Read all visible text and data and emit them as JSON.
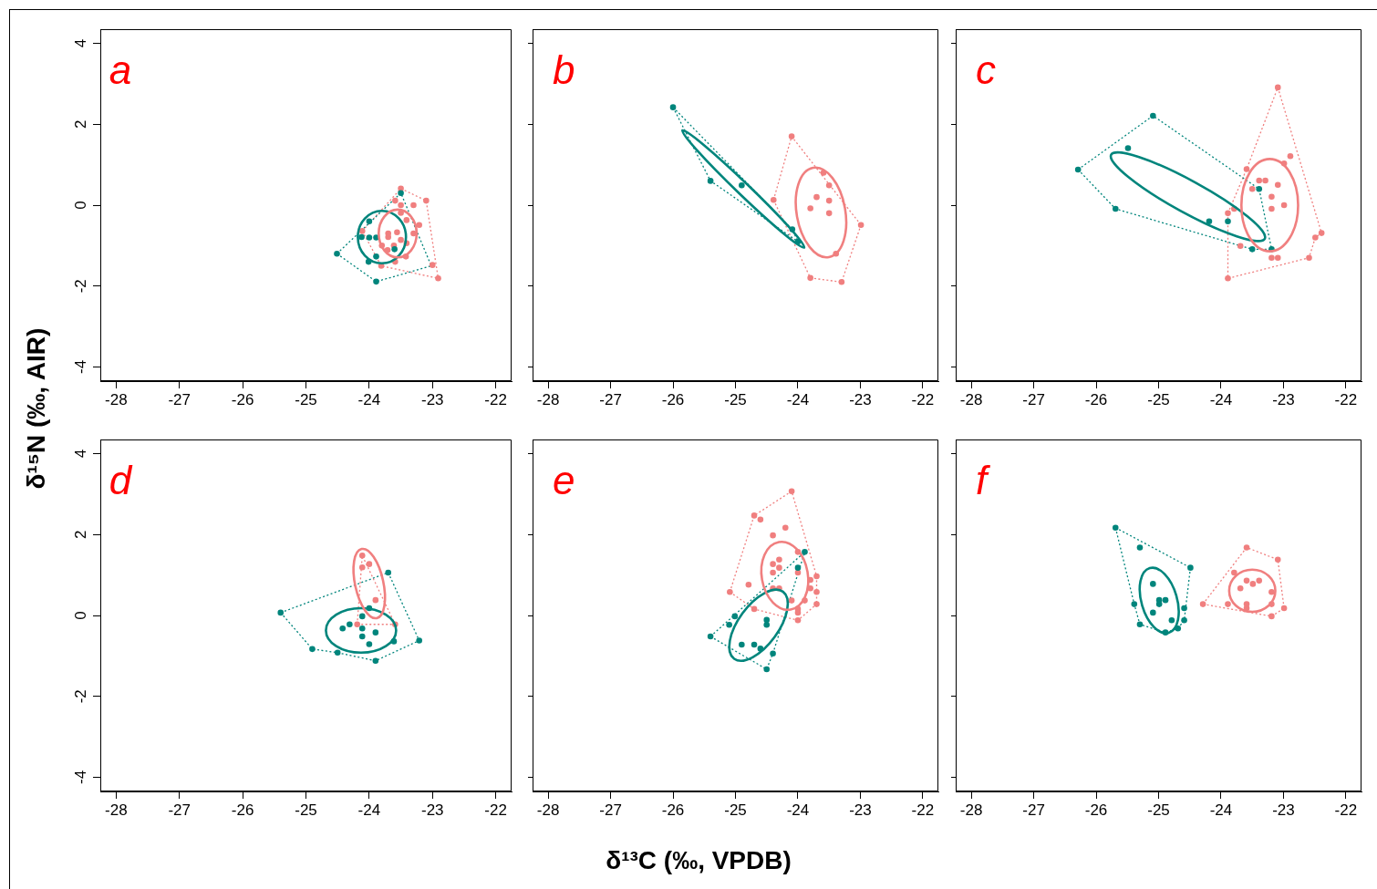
{
  "chart_data": [
    {
      "type": "scatter",
      "title": "a",
      "ylabel": "δ¹⁵N (‰, AIR)",
      "xlim": [
        -28.25,
        -21.75
      ],
      "ylim": [
        -4.35,
        4.35
      ],
      "xticks": [
        -28,
        -27,
        -26,
        -25,
        -24,
        -23,
        -22
      ],
      "yticks": [
        -4,
        -2,
        0,
        2,
        4
      ],
      "series": [
        {
          "marker": "circle",
          "color": "#00857c",
          "x": [
            -24.51,
            -23.89,
            -23.5,
            -24.0,
            -24.12,
            -24.0,
            -23.89,
            -23.6,
            -23.89,
            -24.01
          ],
          "values": [
            -1.2,
            -1.89,
            0.3,
            -0.4,
            -0.79,
            -0.8,
            -0.8,
            -1.09,
            -1.27,
            -1.4
          ]
        },
        {
          "marker": "circle",
          "color": "#f07f7f",
          "x": [
            -23.5,
            -23.59,
            -23.5,
            -23.3,
            -23.1,
            -23.5,
            -23.41,
            -23.21,
            -24.11,
            -23.7,
            -23.56,
            -23.3,
            -23.7,
            -23.5,
            -23.8,
            -23.61,
            -23.41,
            -23.71,
            -23.42,
            -23.59,
            -23.81,
            -23.0,
            -22.91
          ],
          "values": [
            0.41,
            0.11,
            0,
            0,
            0.11,
            -0.19,
            -0.37,
            -0.49,
            -0.64,
            -0.7,
            -0.67,
            -0.7,
            -0.79,
            -0.86,
            -1.0,
            -1.0,
            -0.94,
            -1.11,
            -1.27,
            -1.4,
            -1.5,
            -1.48,
            -1.81
          ]
        },
        {
          "type": "line",
          "marker": "none",
          "line_style": "dotted",
          "color": "#00857c",
          "x": [
            -24.51,
            -23.5,
            -23.02
          ],
          "values": [
            -1.2,
            0.3,
            -1.5
          ]
        },
        {
          "type": "line",
          "marker": "none",
          "line_style": "dotted",
          "color": "#00857c",
          "x": [
            -24.51,
            -23.89,
            -23.02
          ],
          "values": [
            -1.2,
            -1.89,
            -1.5
          ]
        },
        {
          "type": "line",
          "marker": "none",
          "line_style": "dotted",
          "color": "#f07f7f",
          "x": [
            -24.11,
            -23.5,
            -23.1,
            -22.91
          ],
          "values": [
            -0.64,
            0.41,
            0.11,
            -1.81
          ]
        },
        {
          "type": "line",
          "marker": "none",
          "line_style": "dotted",
          "color": "#f07f7f",
          "x": [
            -24.11,
            -23.81,
            -22.91
          ],
          "values": [
            -0.64,
            -1.5,
            -1.81
          ]
        }
      ]
    },
    {
      "type": "scatter",
      "title": "b",
      "tick_labels": "x",
      "xlim": [
        -28.25,
        -21.75
      ],
      "ylim": [
        -4.35,
        4.35
      ],
      "xticks": [
        -28,
        -27,
        -26,
        -25,
        -24,
        -23,
        -22
      ],
      "yticks": [
        -4,
        -2,
        0,
        2,
        4
      ],
      "series": [
        {
          "marker": "circle",
          "color": "#00857c",
          "x": [
            -26.0,
            -25.4,
            -24.9,
            -24.09,
            -24.0
          ],
          "values": [
            2.42,
            0.6,
            0.49,
            -0.6,
            -0.9
          ]
        },
        {
          "marker": "circle",
          "color": "#f07f7f",
          "x": [
            -24.1,
            -23.59,
            -23.5,
            -23.7,
            -23.5,
            -24.39,
            -23.8,
            -23.5,
            -22.99,
            -23.39,
            -23.8,
            -23.3
          ],
          "values": [
            1.7,
            0.8,
            0.49,
            0.2,
            0.11,
            0.13,
            -0.08,
            -0.2,
            -0.49,
            -1.2,
            -1.8,
            -1.9
          ]
        },
        {
          "type": "line",
          "marker": "none",
          "line_style": "dotted",
          "color": "#00857c",
          "x": [
            -26.0,
            -24.09,
            -24.0
          ],
          "values": [
            2.42,
            -0.6,
            -0.9
          ]
        },
        {
          "type": "line",
          "marker": "none",
          "line_style": "dotted",
          "color": "#00857c",
          "x": [
            -26.0,
            -25.4,
            -24.0
          ],
          "values": [
            2.42,
            0.6,
            -0.9
          ]
        },
        {
          "type": "line",
          "marker": "none",
          "line_style": "dotted",
          "color": "#f07f7f",
          "x": [
            -24.39,
            -24.1,
            -22.99
          ],
          "values": [
            0.13,
            1.7,
            -0.49
          ]
        },
        {
          "type": "line",
          "marker": "none",
          "line_style": "dotted",
          "color": "#f07f7f",
          "x": [
            -24.39,
            -23.8,
            -23.3,
            -22.99
          ],
          "values": [
            0.13,
            -1.8,
            -1.9,
            -0.49
          ]
        }
      ]
    },
    {
      "type": "scatter",
      "title": "c",
      "tick_labels": "x",
      "xlim": [
        -28.25,
        -21.75
      ],
      "ylim": [
        -4.35,
        4.35
      ],
      "xticks": [
        -28,
        -27,
        -26,
        -25,
        -24,
        -23,
        -22
      ],
      "yticks": [
        -4,
        -2,
        0,
        2,
        4
      ],
      "series": [
        {
          "marker": "circle",
          "color": "#00857c",
          "x": [
            -25.09,
            -26.29,
            -25.49,
            -25.69,
            -24.19,
            -23.89,
            -23.39,
            -23.5,
            -23.19
          ],
          "values": [
            2.21,
            0.88,
            1.41,
            -0.09,
            -0.4,
            -0.4,
            0.4,
            -1.09,
            -1.09
          ]
        },
        {
          "marker": "circle",
          "color": "#f07f7f",
          "x": [
            -23.09,
            -22.89,
            -22.99,
            -23.59,
            -23.39,
            -23.29,
            -23.5,
            -23.09,
            -23.19,
            -22.99,
            -23.19,
            -23.79,
            -23.89,
            -22.49,
            -22.39,
            -22.59,
            -23.19,
            -23.09,
            -23.69,
            -23.89
          ],
          "values": [
            2.91,
            1.21,
            1.03,
            0.89,
            0.61,
            0.61,
            0.4,
            0.5,
            0.21,
            0,
            -0.09,
            -0.09,
            -0.2,
            -0.8,
            -0.69,
            -1.3,
            -1.3,
            -1.3,
            -1.01,
            -1.81
          ]
        },
        {
          "type": "line",
          "marker": "none",
          "line_style": "dotted",
          "color": "#00857c",
          "x": [
            -26.29,
            -25.09,
            -23.39,
            -23.19
          ],
          "values": [
            0.88,
            2.21,
            0.4,
            -1.09
          ]
        },
        {
          "type": "line",
          "marker": "none",
          "line_style": "dotted",
          "color": "#00857c",
          "x": [
            -26.29,
            -25.69,
            -23.5,
            -23.19
          ],
          "values": [
            0.88,
            -0.09,
            -1.09,
            -1.09
          ]
        },
        {
          "type": "line",
          "marker": "none",
          "line_style": "dotted",
          "color": "#f07f7f",
          "x": [
            -23.89,
            -23.59,
            -23.09,
            -22.39
          ],
          "values": [
            -0.2,
            0.89,
            2.91,
            -0.69
          ]
        },
        {
          "type": "line",
          "marker": "none",
          "line_style": "dotted",
          "color": "#f07f7f",
          "x": [
            -23.89,
            -23.89,
            -22.59,
            -22.49,
            -22.39
          ],
          "values": [
            -0.2,
            -1.81,
            -1.3,
            -0.8,
            -0.69
          ]
        }
      ]
    },
    {
      "type": "scatter",
      "title": "d",
      "xlim": [
        -28.25,
        -21.75
      ],
      "ylim": [
        -4.35,
        4.35
      ],
      "xticks": [
        -28,
        -27,
        -26,
        -25,
        -24,
        -23,
        -22
      ],
      "yticks": [
        -4,
        -2,
        0,
        2,
        4
      ],
      "series": [
        {
          "marker": "circle",
          "color": "#00857c",
          "x": [
            -25.4,
            -23.7,
            -24.0,
            -24.11,
            -24.31,
            -24.42,
            -24.11,
            -23.9,
            -24.11,
            -24.0,
            -23.61,
            -23.21,
            -24.9,
            -24.5,
            -23.9
          ],
          "values": [
            0.07,
            1.06,
            0.18,
            -0.02,
            -0.22,
            -0.32,
            -0.32,
            -0.42,
            -0.52,
            -0.71,
            -0.64,
            -0.62,
            -0.83,
            -0.92,
            -1.12
          ]
        },
        {
          "marker": "circle",
          "color": "#f07f7f",
          "x": [
            -24.11,
            -24.0,
            -24.11,
            -23.9,
            -24.19,
            -23.59
          ],
          "values": [
            1.48,
            1.27,
            1.19,
            0.38,
            -0.22,
            -0.22
          ]
        },
        {
          "type": "line",
          "marker": "none",
          "line_style": "dotted",
          "color": "#00857c",
          "x": [
            -25.4,
            -23.7,
            -23.21
          ],
          "values": [
            0.07,
            1.06,
            -0.62
          ]
        },
        {
          "type": "line",
          "marker": "none",
          "line_style": "dotted",
          "color": "#00857c",
          "x": [
            -25.4,
            -24.9,
            -24.5,
            -23.9,
            -23.21
          ],
          "values": [
            0.07,
            -0.83,
            -0.92,
            -1.12,
            -0.62
          ]
        },
        {
          "type": "line",
          "marker": "none",
          "line_style": "dotted",
          "color": "#f07f7f",
          "x": [
            -24.19,
            -24.11,
            -23.59
          ],
          "values": [
            -0.22,
            1.48,
            -0.22
          ]
        },
        {
          "type": "line",
          "marker": "none",
          "line_style": "dotted",
          "color": "#f07f7f",
          "x": [
            -24.19,
            -23.59
          ],
          "values": [
            -0.22,
            -0.22
          ]
        }
      ]
    },
    {
      "type": "scatter",
      "title": "e",
      "xlabel": "δ¹³C (‰, VPDB)",
      "tick_labels": "x",
      "xlim": [
        -28.25,
        -21.75
      ],
      "ylim": [
        -4.35,
        4.35
      ],
      "xticks": [
        -28,
        -27,
        -26,
        -25,
        -24,
        -23,
        -22
      ],
      "yticks": [
        -4,
        -2,
        0,
        2,
        4
      ],
      "series": [
        {
          "marker": "circle",
          "color": "#00857c",
          "x": [
            -23.89,
            -24.0,
            -25.01,
            -25.1,
            -25.4,
            -24.5,
            -24.5,
            -24.9,
            -24.7,
            -24.6,
            -24.4,
            -24.5
          ],
          "values": [
            1.57,
            1.18,
            -0.02,
            -0.23,
            -0.52,
            -0.11,
            -0.23,
            -0.72,
            -0.72,
            -0.82,
            -0.94,
            -1.33
          ]
        },
        {
          "marker": "circle",
          "color": "#f07f7f",
          "x": [
            -24.1,
            -24.7,
            -24.6,
            -24.2,
            -24.4,
            -24.4,
            -24.3,
            -24.4,
            -24.3,
            -24.0,
            -24.0,
            -24.79,
            -25.09,
            -24.4,
            -24.3,
            -23.8,
            -23.7,
            -23.8,
            -23.7,
            -23.7,
            -23.89,
            -24.1,
            -24.7,
            -24.0,
            -24.0,
            -24.0
          ],
          "values": [
            3.07,
            2.47,
            2.37,
            2.17,
            1.98,
            1.27,
            1.38,
            1.06,
            1.18,
            1.57,
            1.06,
            0.76,
            0.58,
            0.67,
            0.67,
            0.88,
            0.97,
            0.67,
            0.58,
            0.28,
            0.37,
            0.37,
            0.16,
            0.16,
            0.07,
            -0.12
          ]
        },
        {
          "type": "line",
          "marker": "none",
          "line_style": "dotted",
          "color": "#00857c",
          "x": [
            -25.4,
            -23.89
          ],
          "values": [
            -0.52,
            1.57
          ]
        },
        {
          "type": "line",
          "marker": "none",
          "line_style": "dotted",
          "color": "#00857c",
          "x": [
            -25.4,
            -24.5,
            -24.4,
            -23.89
          ],
          "values": [
            -0.52,
            -1.33,
            -0.94,
            1.57
          ]
        },
        {
          "type": "line",
          "marker": "none",
          "line_style": "dotted",
          "color": "#f07f7f",
          "x": [
            -25.09,
            -24.7,
            -24.1,
            -23.7,
            -23.7
          ],
          "values": [
            0.58,
            2.47,
            3.07,
            0.97,
            0.28
          ]
        },
        {
          "type": "line",
          "marker": "none",
          "line_style": "dotted",
          "color": "#f07f7f",
          "x": [
            -25.09,
            -24.7,
            -24.0,
            -23.7
          ],
          "values": [
            0.58,
            0.16,
            -0.12,
            0.28
          ]
        }
      ]
    },
    {
      "type": "scatter",
      "title": "f",
      "tick_labels": "x",
      "xlim": [
        -28.25,
        -21.75
      ],
      "ylim": [
        -4.35,
        4.35
      ],
      "xticks": [
        -28,
        -27,
        -26,
        -25,
        -24,
        -23,
        -22
      ],
      "yticks": [
        -4,
        -2,
        0,
        2,
        4
      ],
      "series": [
        {
          "marker": "circle",
          "color": "#00857c",
          "x": [
            -25.69,
            -25.3,
            -24.49,
            -25.09,
            -24.99,
            -24.89,
            -24.99,
            -25.09,
            -25.39,
            -24.59,
            -24.59,
            -24.79,
            -25.3,
            -24.69,
            -24.89
          ],
          "values": [
            2.17,
            1.68,
            1.18,
            0.78,
            0.38,
            0.38,
            0.28,
            0.07,
            0.28,
            0.18,
            -0.12,
            -0.12,
            -0.22,
            -0.32,
            -0.42
          ]
        },
        {
          "marker": "circle",
          "color": "#f07f7f",
          "x": [
            -23.59,
            -23.09,
            -23.79,
            -23.59,
            -23.49,
            -23.39,
            -23.69,
            -23.19,
            -24.29,
            -23.89,
            -23.59,
            -23.19,
            -23.59,
            -22.99,
            -23.19
          ],
          "values": [
            1.68,
            1.38,
            1.06,
            0.86,
            0.78,
            0.86,
            0.67,
            0.58,
            0.28,
            0.28,
            0.28,
            0.28,
            0.18,
            0.18,
            -0.02
          ]
        },
        {
          "type": "line",
          "marker": "none",
          "line_style": "dotted",
          "color": "#00857c",
          "x": [
            -25.69,
            -24.49
          ],
          "values": [
            2.17,
            1.18
          ]
        },
        {
          "type": "line",
          "marker": "none",
          "line_style": "dotted",
          "color": "#00857c",
          "x": [
            -25.69,
            -25.39,
            -25.3,
            -24.89,
            -24.69,
            -24.59,
            -24.49
          ],
          "values": [
            2.17,
            0.28,
            -0.22,
            -0.42,
            -0.32,
            -0.12,
            1.18
          ]
        },
        {
          "type": "line",
          "marker": "none",
          "line_style": "dotted",
          "color": "#f07f7f",
          "x": [
            -24.29,
            -23.59,
            -23.09,
            -22.99
          ],
          "values": [
            0.28,
            1.68,
            1.38,
            0.18
          ]
        },
        {
          "type": "line",
          "marker": "none",
          "line_style": "dotted",
          "color": "#f07f7f",
          "x": [
            -24.29,
            -23.19,
            -22.99
          ],
          "values": [
            0.28,
            -0.02,
            0.18
          ]
        }
      ]
    }
  ]
}
